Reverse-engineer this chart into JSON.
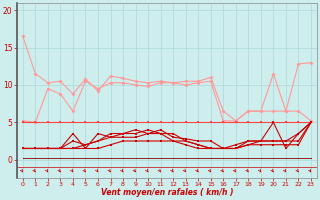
{
  "background_color": "#ceeeed",
  "grid_color": "#aed8d8",
  "x_label": "Vent moyen/en rafales ( km/h )",
  "x_ticks": [
    0,
    1,
    2,
    3,
    4,
    5,
    6,
    7,
    8,
    9,
    10,
    11,
    12,
    13,
    14,
    15,
    16,
    17,
    18,
    19,
    20,
    21,
    22,
    23
  ],
  "y_ticks": [
    0,
    5,
    10,
    15,
    20
  ],
  "ylim": [
    -2.5,
    21
  ],
  "xlim": [
    -0.5,
    23.5
  ],
  "series": [
    {
      "color": "#ff9999",
      "marker": "D",
      "markersize": 2.0,
      "linewidth": 0.8,
      "values": [
        16.5,
        11.5,
        10.3,
        10.5,
        8.8,
        10.8,
        9.2,
        11.2,
        10.9,
        10.5,
        10.3,
        10.5,
        10.3,
        10.5,
        10.5,
        11.0,
        6.5,
        5.2,
        6.5,
        6.5,
        11.5,
        6.5,
        12.8,
        13.0
      ]
    },
    {
      "color": "#ff9999",
      "marker": "D",
      "markersize": 2.0,
      "linewidth": 0.8,
      "values": [
        5.2,
        5.0,
        9.5,
        8.8,
        6.5,
        10.5,
        9.5,
        10.3,
        10.3,
        10.0,
        9.8,
        10.3,
        10.3,
        10.0,
        10.3,
        10.5,
        5.2,
        5.2,
        6.5,
        6.5,
        6.5,
        6.5,
        6.5,
        5.2
      ]
    },
    {
      "color": "#ff4444",
      "marker": "s",
      "markersize": 2.0,
      "linewidth": 0.8,
      "values": [
        5.0,
        5.0,
        5.0,
        5.0,
        5.0,
        5.0,
        5.0,
        5.0,
        5.0,
        5.0,
        5.0,
        5.0,
        5.0,
        5.0,
        5.0,
        5.0,
        5.0,
        5.0,
        5.0,
        5.0,
        5.0,
        5.0,
        5.0,
        5.0
      ]
    },
    {
      "color": "#cc0000",
      "marker": "s",
      "markersize": 2.0,
      "linewidth": 0.8,
      "values": [
        1.5,
        1.5,
        1.5,
        1.5,
        3.5,
        1.5,
        3.5,
        3.0,
        3.5,
        4.0,
        3.5,
        4.0,
        3.0,
        2.8,
        2.5,
        2.5,
        1.5,
        2.0,
        2.5,
        2.5,
        5.0,
        1.5,
        3.5,
        5.0
      ]
    },
    {
      "color": "#cc0000",
      "marker": "s",
      "markersize": 2.0,
      "linewidth": 0.8,
      "values": [
        1.5,
        1.5,
        1.5,
        1.5,
        2.5,
        2.0,
        2.5,
        3.5,
        3.5,
        3.5,
        4.0,
        3.5,
        3.5,
        2.5,
        2.0,
        1.5,
        1.5,
        1.5,
        2.5,
        2.5,
        2.5,
        2.5,
        3.5,
        5.0
      ]
    },
    {
      "color": "#cc0000",
      "marker": "s",
      "markersize": 2.0,
      "linewidth": 0.8,
      "values": [
        1.5,
        1.5,
        1.5,
        1.5,
        1.5,
        2.0,
        2.5,
        3.0,
        3.0,
        3.0,
        3.5,
        3.5,
        2.5,
        2.5,
        2.0,
        1.5,
        1.5,
        1.5,
        2.0,
        2.5,
        2.5,
        2.5,
        2.5,
        5.0
      ]
    },
    {
      "color": "#cc0000",
      "marker": "s",
      "markersize": 2.0,
      "linewidth": 0.8,
      "values": [
        1.5,
        1.5,
        1.5,
        1.5,
        1.5,
        1.5,
        1.5,
        2.0,
        2.5,
        2.5,
        2.5,
        2.5,
        2.5,
        2.0,
        1.5,
        1.5,
        1.5,
        1.5,
        2.0,
        2.0,
        2.0,
        2.0,
        2.0,
        5.0
      ]
    },
    {
      "color": "#880000",
      "marker": ".",
      "markersize": 1.5,
      "linewidth": 0.6,
      "values": [
        0.2,
        0.2,
        0.2,
        0.2,
        0.2,
        0.2,
        0.2,
        0.2,
        0.2,
        0.2,
        0.2,
        0.2,
        0.2,
        0.2,
        0.2,
        0.2,
        0.2,
        0.2,
        0.2,
        0.2,
        0.2,
        0.2,
        0.2,
        0.2
      ]
    }
  ],
  "label_color": "#cc0000",
  "tick_color": "#cc0000",
  "spine_color": "#888888",
  "left_spine_color": "#555555"
}
